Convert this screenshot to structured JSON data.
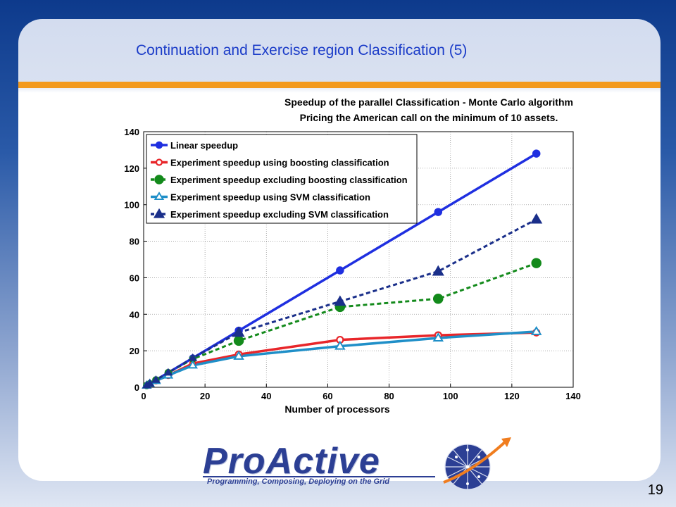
{
  "slide": {
    "title": "Continuation and Exercise region Classification (5)",
    "page_number": "19"
  },
  "logo": {
    "name": "ProActive",
    "tagline": "Programming, Composing, Deploying on the Grid"
  },
  "chart_data": {
    "type": "line",
    "title": "Speedup of the parallel Classification - Monte Carlo algorithm",
    "subtitle": "Pricing the American call on the minimum of 10 assets.",
    "xlabel": "Number of processors",
    "ylabel": "",
    "xlim": [
      0,
      140
    ],
    "ylim": [
      0,
      140
    ],
    "xticks": [
      0,
      20,
      40,
      60,
      80,
      100,
      120,
      140
    ],
    "yticks": [
      0,
      20,
      40,
      60,
      80,
      100,
      120,
      140
    ],
    "grid": true,
    "legend_position": "top-left",
    "series": [
      {
        "name": "Linear speedup",
        "color": "#1f2fe0",
        "marker": "filled-circle",
        "dashed": false,
        "x": [
          1,
          2,
          4,
          8,
          16,
          31,
          64,
          96,
          128
        ],
        "y": [
          1,
          2,
          4,
          8,
          16,
          31,
          64,
          96,
          128
        ]
      },
      {
        "name": "Experiment speedup using boosting classification",
        "color": "#e8262a",
        "marker": "open-circle",
        "dashed": false,
        "x": [
          1,
          2,
          4,
          8,
          16,
          31,
          64,
          96,
          128
        ],
        "y": [
          1,
          2,
          3.5,
          6.5,
          13,
          18,
          26,
          28.5,
          30
        ]
      },
      {
        "name": "Experiment speedup excluding boosting classification",
        "color": "#138a1b",
        "marker": "filled-circle",
        "dashed": true,
        "x": [
          1,
          2,
          4,
          8,
          16,
          31,
          64,
          96,
          128
        ],
        "y": [
          1,
          2,
          4,
          8,
          15.5,
          25.5,
          44,
          48.5,
          68
        ]
      },
      {
        "name": "Experiment speedup using SVM classification",
        "color": "#1f8fc8",
        "marker": "open-triangle",
        "dashed": false,
        "x": [
          1,
          2,
          4,
          8,
          16,
          31,
          64,
          96,
          128
        ],
        "y": [
          1,
          2,
          3.5,
          6.5,
          12,
          17,
          22.5,
          27,
          30.5
        ]
      },
      {
        "name": "Experiment speedup excluding SVM classification",
        "color": "#1a2f8a",
        "marker": "filled-triangle",
        "dashed": true,
        "x": [
          1,
          2,
          4,
          8,
          16,
          31,
          64,
          96,
          128
        ],
        "y": [
          1,
          2,
          4,
          8,
          16,
          30,
          47,
          63.5,
          92
        ]
      }
    ]
  }
}
